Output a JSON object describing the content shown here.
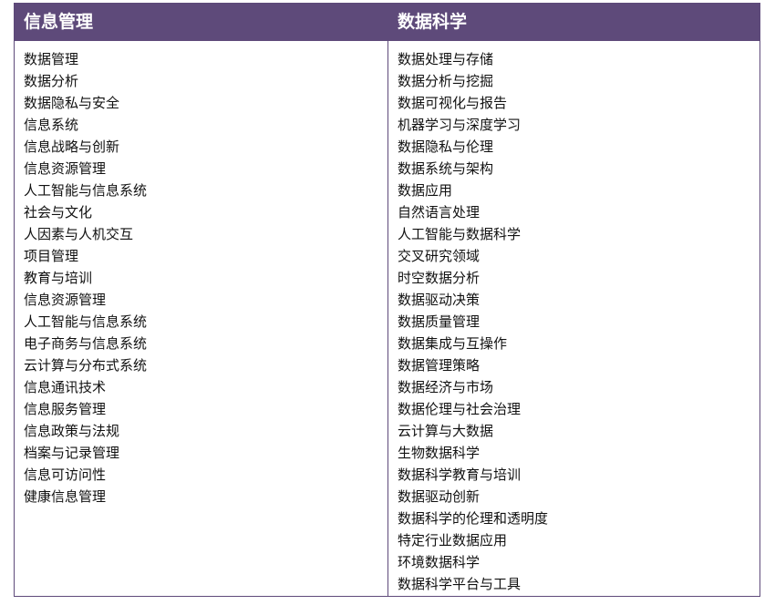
{
  "header_color": "#5e4a7a",
  "columns": [
    {
      "title": "信息管理",
      "items": [
        "数据管理",
        "数据分析",
        "数据隐私与安全",
        "信息系统",
        "信息战略与创新",
        "信息资源管理",
        "人工智能与信息系统",
        "社会与文化",
        "人因素与人机交互",
        "项目管理",
        "教育与培训",
        "信息资源管理",
        "人工智能与信息系统",
        "电子商务与信息系统",
        "云计算与分布式系统",
        "信息通讯技术",
        "信息服务管理",
        "信息政策与法规",
        "档案与记录管理",
        "信息可访问性",
        "健康信息管理"
      ]
    },
    {
      "title": "数据科学",
      "items": [
        "数据处理与存储",
        "数据分析与挖掘",
        "数据可视化与报告",
        "机器学习与深度学习",
        "数据隐私与伦理",
        "数据系统与架构",
        "数据应用",
        "自然语言处理",
        "人工智能与数据科学",
        "交叉研究领域",
        "时空数据分析",
        "数据驱动决策",
        "数据质量管理",
        "数据集成与互操作",
        "数据管理策略",
        "数据经济与市场",
        "数据伦理与社会治理",
        "云计算与大数据",
        "生物数据科学",
        "数据科学教育与培训",
        "数据驱动创新",
        "数据科学的伦理和透明度",
        "特定行业数据应用",
        "环境数据科学",
        "数据科学平台与工具"
      ]
    }
  ]
}
